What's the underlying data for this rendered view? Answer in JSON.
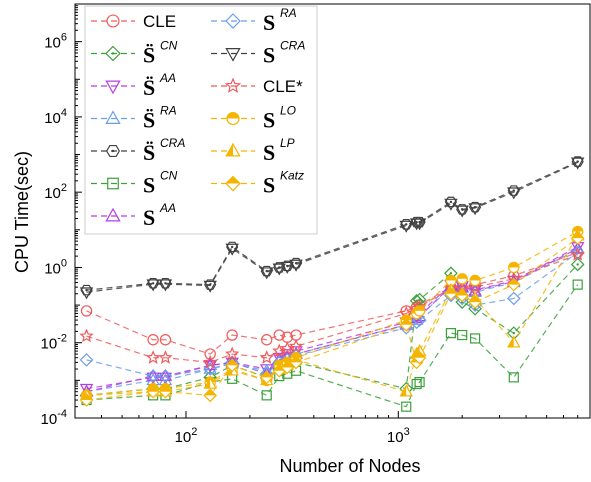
{
  "chart_data": {
    "type": "line",
    "title": "",
    "xlabel": "Number of Nodes",
    "ylabel": "CPU Time(sec)",
    "x_scale": "log",
    "y_scale": "log",
    "xlim": [
      30,
      8000
    ],
    "ylim": [
      0.0001,
      10000000
    ],
    "x_ticks": [
      {
        "value": 100,
        "base": "10",
        "exp": "2"
      },
      {
        "value": 1000,
        "base": "10",
        "exp": "3"
      }
    ],
    "y_ticks": [
      {
        "value": 0.0001,
        "base": "10",
        "exp": "-4"
      },
      {
        "value": 0.01,
        "base": "10",
        "exp": "-2"
      },
      {
        "value": 1,
        "base": "10",
        "exp": "0"
      },
      {
        "value": 100,
        "base": "10",
        "exp": "2"
      },
      {
        "value": 10000,
        "base": "10",
        "exp": "4"
      },
      {
        "value": 1000000,
        "base": "10",
        "exp": "6"
      }
    ],
    "grid": false,
    "legend_position": "top-left",
    "x": [
      34,
      70,
      80,
      130,
      165,
      240,
      275,
      300,
      330,
      1090,
      1220,
      1260,
      1770,
      2000,
      2300,
      3500,
      7000
    ],
    "series": [
      {
        "name": "CLE",
        "color": "#f05a5a",
        "marker": "circle-open",
        "values": [
          0.07,
          0.012,
          0.012,
          0.005,
          0.016,
          0.012,
          0.016,
          0.014,
          0.016,
          0.07,
          0.09,
          0.1,
          0.3,
          0.3,
          0.35,
          0.6,
          2.5
        ]
      },
      {
        "name": "CN",
        "base": "S̈",
        "color": "#3aa03a",
        "marker": "diamond-dot",
        "values": [
          0.0004,
          0.0006,
          0.0006,
          0.0012,
          0.0025,
          0.0012,
          0.002,
          0.0025,
          0.003,
          0.0006,
          0.13,
          0.14,
          0.7,
          0.12,
          0.08,
          0.018,
          1.2
        ]
      },
      {
        "name": "AA",
        "base": "S̈",
        "color": "#b43ce6",
        "marker": "triangle-down-open",
        "values": [
          0.0006,
          0.0012,
          0.0012,
          0.0025,
          0.003,
          0.002,
          0.004,
          0.005,
          0.006,
          0.035,
          0.05,
          0.06,
          0.35,
          0.32,
          0.25,
          0.45,
          3.5
        ]
      },
      {
        "name": "RA",
        "base": "S̈",
        "color": "#6a9ee8",
        "marker": "triangle-open",
        "values": [
          0.0005,
          0.001,
          0.001,
          0.002,
          0.0028,
          0.0018,
          0.0035,
          0.004,
          0.005,
          0.03,
          0.04,
          0.05,
          0.3,
          0.28,
          0.22,
          0.4,
          3.0
        ]
      },
      {
        "name": "CRA",
        "base": "S̈",
        "color": "#404040",
        "marker": "hexagon-dot",
        "values": [
          0.25,
          0.38,
          0.38,
          0.35,
          3.5,
          0.8,
          1.0,
          1.1,
          1.3,
          14,
          16,
          16,
          55,
          35,
          40,
          110,
          650
        ]
      },
      {
        "name": "CN",
        "base": "S",
        "color": "#3aa03a",
        "marker": "square-open",
        "values": [
          0.0003,
          0.0004,
          0.0004,
          0.0009,
          0.0011,
          0.0004,
          0.0013,
          0.0015,
          0.0018,
          0.0002,
          0.0008,
          0.0009,
          0.018,
          0.016,
          0.013,
          0.0012,
          0.35
        ]
      },
      {
        "name": "AA",
        "base": "S",
        "color": "#b43ce6",
        "marker": "triangle-open",
        "values": [
          0.0005,
          0.0013,
          0.0013,
          0.0025,
          0.003,
          0.0015,
          0.0035,
          0.004,
          0.005,
          0.03,
          0.045,
          0.05,
          0.32,
          0.3,
          0.24,
          0.42,
          3.2
        ]
      },
      {
        "name": "RA",
        "base": "S",
        "color": "#6a9ee8",
        "marker": "diamond-open",
        "values": [
          0.0035,
          0.0013,
          0.0013,
          0.002,
          0.003,
          0.0015,
          0.003,
          0.0035,
          0.0045,
          0.025,
          0.035,
          0.04,
          0.18,
          0.15,
          0.1,
          0.15,
          2.5
        ]
      },
      {
        "name": "CRA",
        "base": "S",
        "color": "#404040",
        "marker": "triangle-down-open",
        "values": [
          0.22,
          0.36,
          0.36,
          0.33,
          3.2,
          0.75,
          0.95,
          1.05,
          1.2,
          13,
          15,
          15,
          50,
          33,
          38,
          100,
          620
        ]
      },
      {
        "name": "CLE*",
        "color": "#f05a5a",
        "marker": "star-open",
        "values": [
          0.015,
          0.004,
          0.004,
          0.003,
          0.005,
          0.004,
          0.006,
          0.007,
          0.008,
          0.06,
          0.08,
          0.09,
          0.28,
          0.27,
          0.3,
          0.5,
          2.2
        ]
      },
      {
        "name": "LO",
        "base": "S",
        "color": "#f5b400",
        "marker": "circle-half",
        "values": [
          0.0004,
          0.0006,
          0.0006,
          0.0009,
          0.002,
          0.001,
          0.0025,
          0.003,
          0.004,
          0.04,
          0.06,
          0.07,
          0.45,
          0.5,
          0.45,
          1.0,
          9.0
        ]
      },
      {
        "name": "LP",
        "base": "S",
        "color": "#f5b400",
        "marker": "triangle-half",
        "values": [
          0.0004,
          0.0005,
          0.0005,
          0.0008,
          0.0018,
          0.001,
          0.002,
          0.0025,
          0.0035,
          0.0005,
          0.005,
          0.006,
          0.25,
          0.2,
          0.15,
          0.01,
          7.0
        ]
      },
      {
        "name": "Katz",
        "base": "S",
        "color": "#f5b400",
        "marker": "diamond-half",
        "values": [
          0.0003,
          0.0005,
          0.0005,
          0.0004,
          0.0025,
          0.0012,
          0.0018,
          0.0022,
          0.003,
          0.03,
          0.003,
          0.004,
          0.2,
          0.18,
          0.12,
          0.35,
          6.0
        ]
      }
    ]
  }
}
